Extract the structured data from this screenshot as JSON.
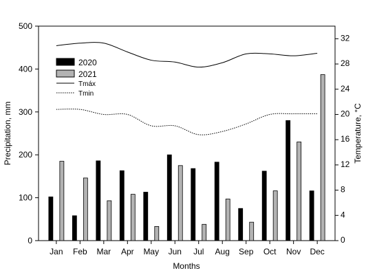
{
  "chart_data": {
    "type": "bar",
    "categories": [
      "Jan",
      "Feb",
      "Mar",
      "Apr",
      "May",
      "Jun",
      "Jul",
      "Aug",
      "Sep",
      "Oct",
      "Nov",
      "Dec"
    ],
    "series": [
      {
        "name": "2020",
        "axis": "left",
        "color": "#000000",
        "values": [
          102,
          58,
          186,
          163,
          113,
          200,
          168,
          183,
          75,
          162,
          280,
          116
        ]
      },
      {
        "name": "2021",
        "axis": "left",
        "color": "#b3b3b3",
        "values": [
          185,
          146,
          93,
          108,
          33,
          175,
          38,
          97,
          43,
          116,
          230,
          387
        ]
      }
    ],
    "lines": [
      {
        "name": "Tmáx",
        "axis": "right",
        "style": "solid",
        "values": [
          30.9,
          31.3,
          31.3,
          29.9,
          28.6,
          28.3,
          27.5,
          28.2,
          29.6,
          29.6,
          29.3,
          29.7
        ]
      },
      {
        "name": "Tmin",
        "axis": "right",
        "style": "dotted",
        "values": [
          20.8,
          20.8,
          20.0,
          20.0,
          18.2,
          18.2,
          16.8,
          17.3,
          18.5,
          20.0,
          20.1,
          20.1
        ]
      }
    ],
    "xlabel": "Months",
    "ylabel": "Precipitation, mm",
    "y2label": "Temperature, °C",
    "ylim": [
      0,
      500
    ],
    "y2lim": [
      0,
      34
    ],
    "yticks": [
      0,
      100,
      200,
      300,
      400,
      500
    ],
    "y2ticks": [
      0,
      4,
      8,
      12,
      16,
      20,
      24,
      28,
      32
    ],
    "grid": false,
    "legend_position": "top-left"
  }
}
